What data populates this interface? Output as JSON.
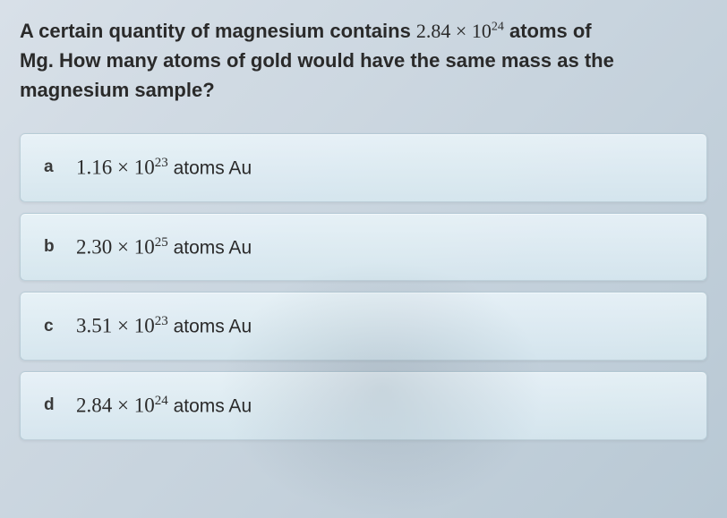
{
  "question": {
    "line1_pre": "A certain quantity of magnesium contains ",
    "line1_value": "2.84 × 10",
    "line1_exp": "24",
    "line1_post": " atoms of",
    "line2": "Mg. How many atoms of gold would have the same mass as the",
    "line3": "magnesium sample?"
  },
  "options": [
    {
      "letter": "a",
      "coefficient": "1.16 × 10",
      "exponent": "23",
      "unit": " atoms Au"
    },
    {
      "letter": "b",
      "coefficient": "2.30 × 10",
      "exponent": "25",
      "unit": " atoms Au"
    },
    {
      "letter": "c",
      "coefficient": "3.51 × 10",
      "exponent": "23",
      "unit": " atoms Au"
    },
    {
      "letter": "d",
      "coefficient": "2.84 × 10",
      "exponent": "24",
      "unit": " atoms Au"
    }
  ],
  "styling": {
    "body_bg_start": "#d8e0e8",
    "body_bg_end": "#b8c8d4",
    "option_bg_start": "rgba(235,245,250,0.85)",
    "option_bg_end": "rgba(215,232,240,0.85)",
    "option_border": "rgba(150,175,190,0.5)",
    "text_color": "#2a2a2a",
    "question_fontsize": 22,
    "option_fontsize": 23,
    "letter_fontsize": 19,
    "border_radius": 6,
    "option_padding_v": 24,
    "option_padding_h": 26,
    "option_gap": 12
  }
}
